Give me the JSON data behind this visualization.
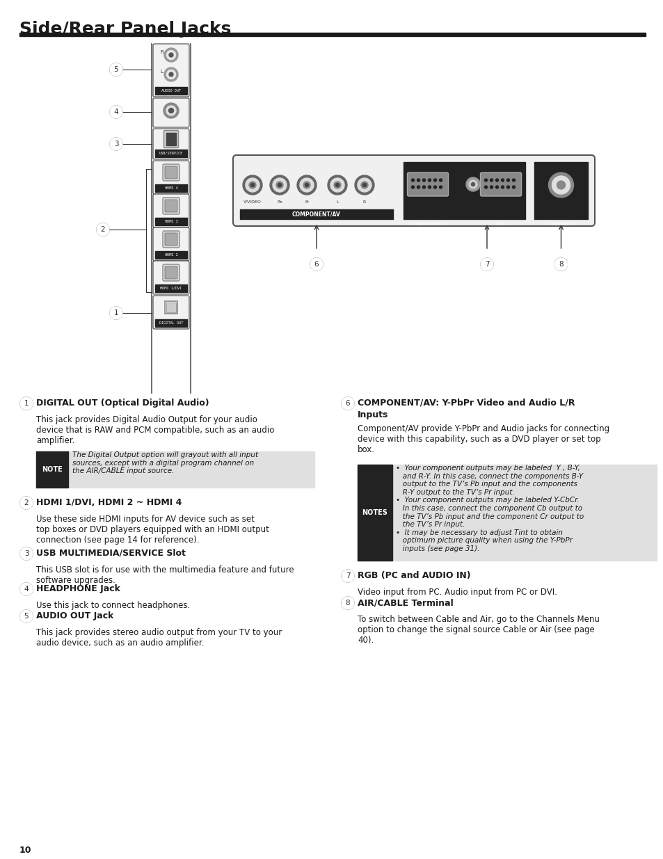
{
  "title": "Side/Rear Panel Jacks",
  "bg_color": "#ffffff",
  "title_color": "#1a1a1a",
  "title_fontsize": 18,
  "section1_header": "DIGITAL OUT (Optical Digital Audio)",
  "section1_body": "This jack provides Digital Audio Output for your audio\ndevice that is RAW and PCM compatible, such as an audio\namplifier.",
  "note1_text": "The Digital Output option will grayout with all input\nsources, except with a digital program channel on\nthe AIR/CABLE input source.",
  "section2_header": "HDMI 1/DVI, HDMI 2 ~ HDMI 4",
  "section2_body": "Use these side HDMI inputs for AV device such as set\ntop boxes or DVD players equipped with an HDMI output\nconnection (see page 14 for reference).",
  "section3_header": "USB MULTIMEDIA/SERVICE Slot",
  "section3_body": "This USB slot is for use with the multimedia feature and future\nsoftware upgrades.",
  "section4_header": "HEADPHONE Jack",
  "section4_body": "Use this jack to connect headphones.",
  "section5_header": "AUDIO OUT Jack",
  "section5_body": "This jack provides stereo audio output from your TV to your\naudio device, such as an audio amplifier.",
  "section6_header_line1": "COMPONENT/AV: Y-PbPr Video and Audio L/R",
  "section6_header_line2": "Inputs",
  "section6_body": "Component/AV provide Y-PbPr and Audio jacks for connecting\ndevice with this capability, such as a DVD player or set top\nbox.",
  "notes6_text_line1": "•  Your component outputs may be labeled  Y , B-Y,",
  "notes6_text_line2": "   and R-Y. In this case, connect the components B-Y",
  "notes6_text_line3": "   output to the TV’s Pb input and the components",
  "notes6_text_line4": "   R-Y output to the TV’s Pr input.",
  "notes6_text_line5": "•  Your component outputs may be labeled Y-CbCr.",
  "notes6_text_line6": "   In this case, connect the component Cb output to",
  "notes6_text_line7": "   the TV’s Pb input and the component Cr output to",
  "notes6_text_line8": "   the TV’s Pr input.",
  "notes6_text_line9": "•  It may be necessary to adjust Tint to obtain",
  "notes6_text_line10": "   optimum picture quality when using the Y-PbPr",
  "notes6_text_line11": "   inputs (see page 31).",
  "section7_header": "RGB (PC and AUDIO IN)",
  "section7_body": "Video input from PC. Audio input from PC or DVI.",
  "section8_header": "AIR/CABLE Terminal",
  "section8_body": "To switch between Cable and Air, go to the Channels Menu\noption to change the signal source Cable or Air (see page\n40).",
  "page_number": "10"
}
